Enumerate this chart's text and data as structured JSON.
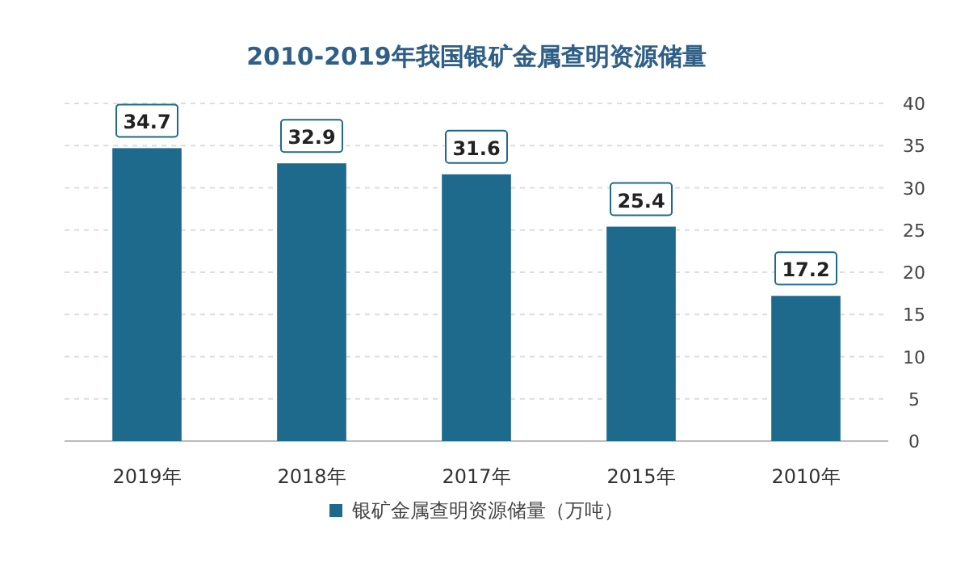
{
  "chart_data": {
    "type": "bar",
    "title": "2010-2019年我国银矿金属查明资源储量",
    "categories": [
      "2019年",
      "2018年",
      "2017年",
      "2015年",
      "2010年"
    ],
    "series": [
      {
        "name": "银矿金属查明资源储量（万吨）",
        "color": "#1e6a8d",
        "values": [
          34.7,
          32.9,
          31.6,
          25.4,
          17.2
        ]
      }
    ],
    "ylim": [
      0,
      40
    ],
    "yticks": [
      0,
      5,
      10,
      15,
      20,
      25,
      30,
      35,
      40
    ],
    "grid": "y",
    "legend": "bottom",
    "data_labels": true
  }
}
